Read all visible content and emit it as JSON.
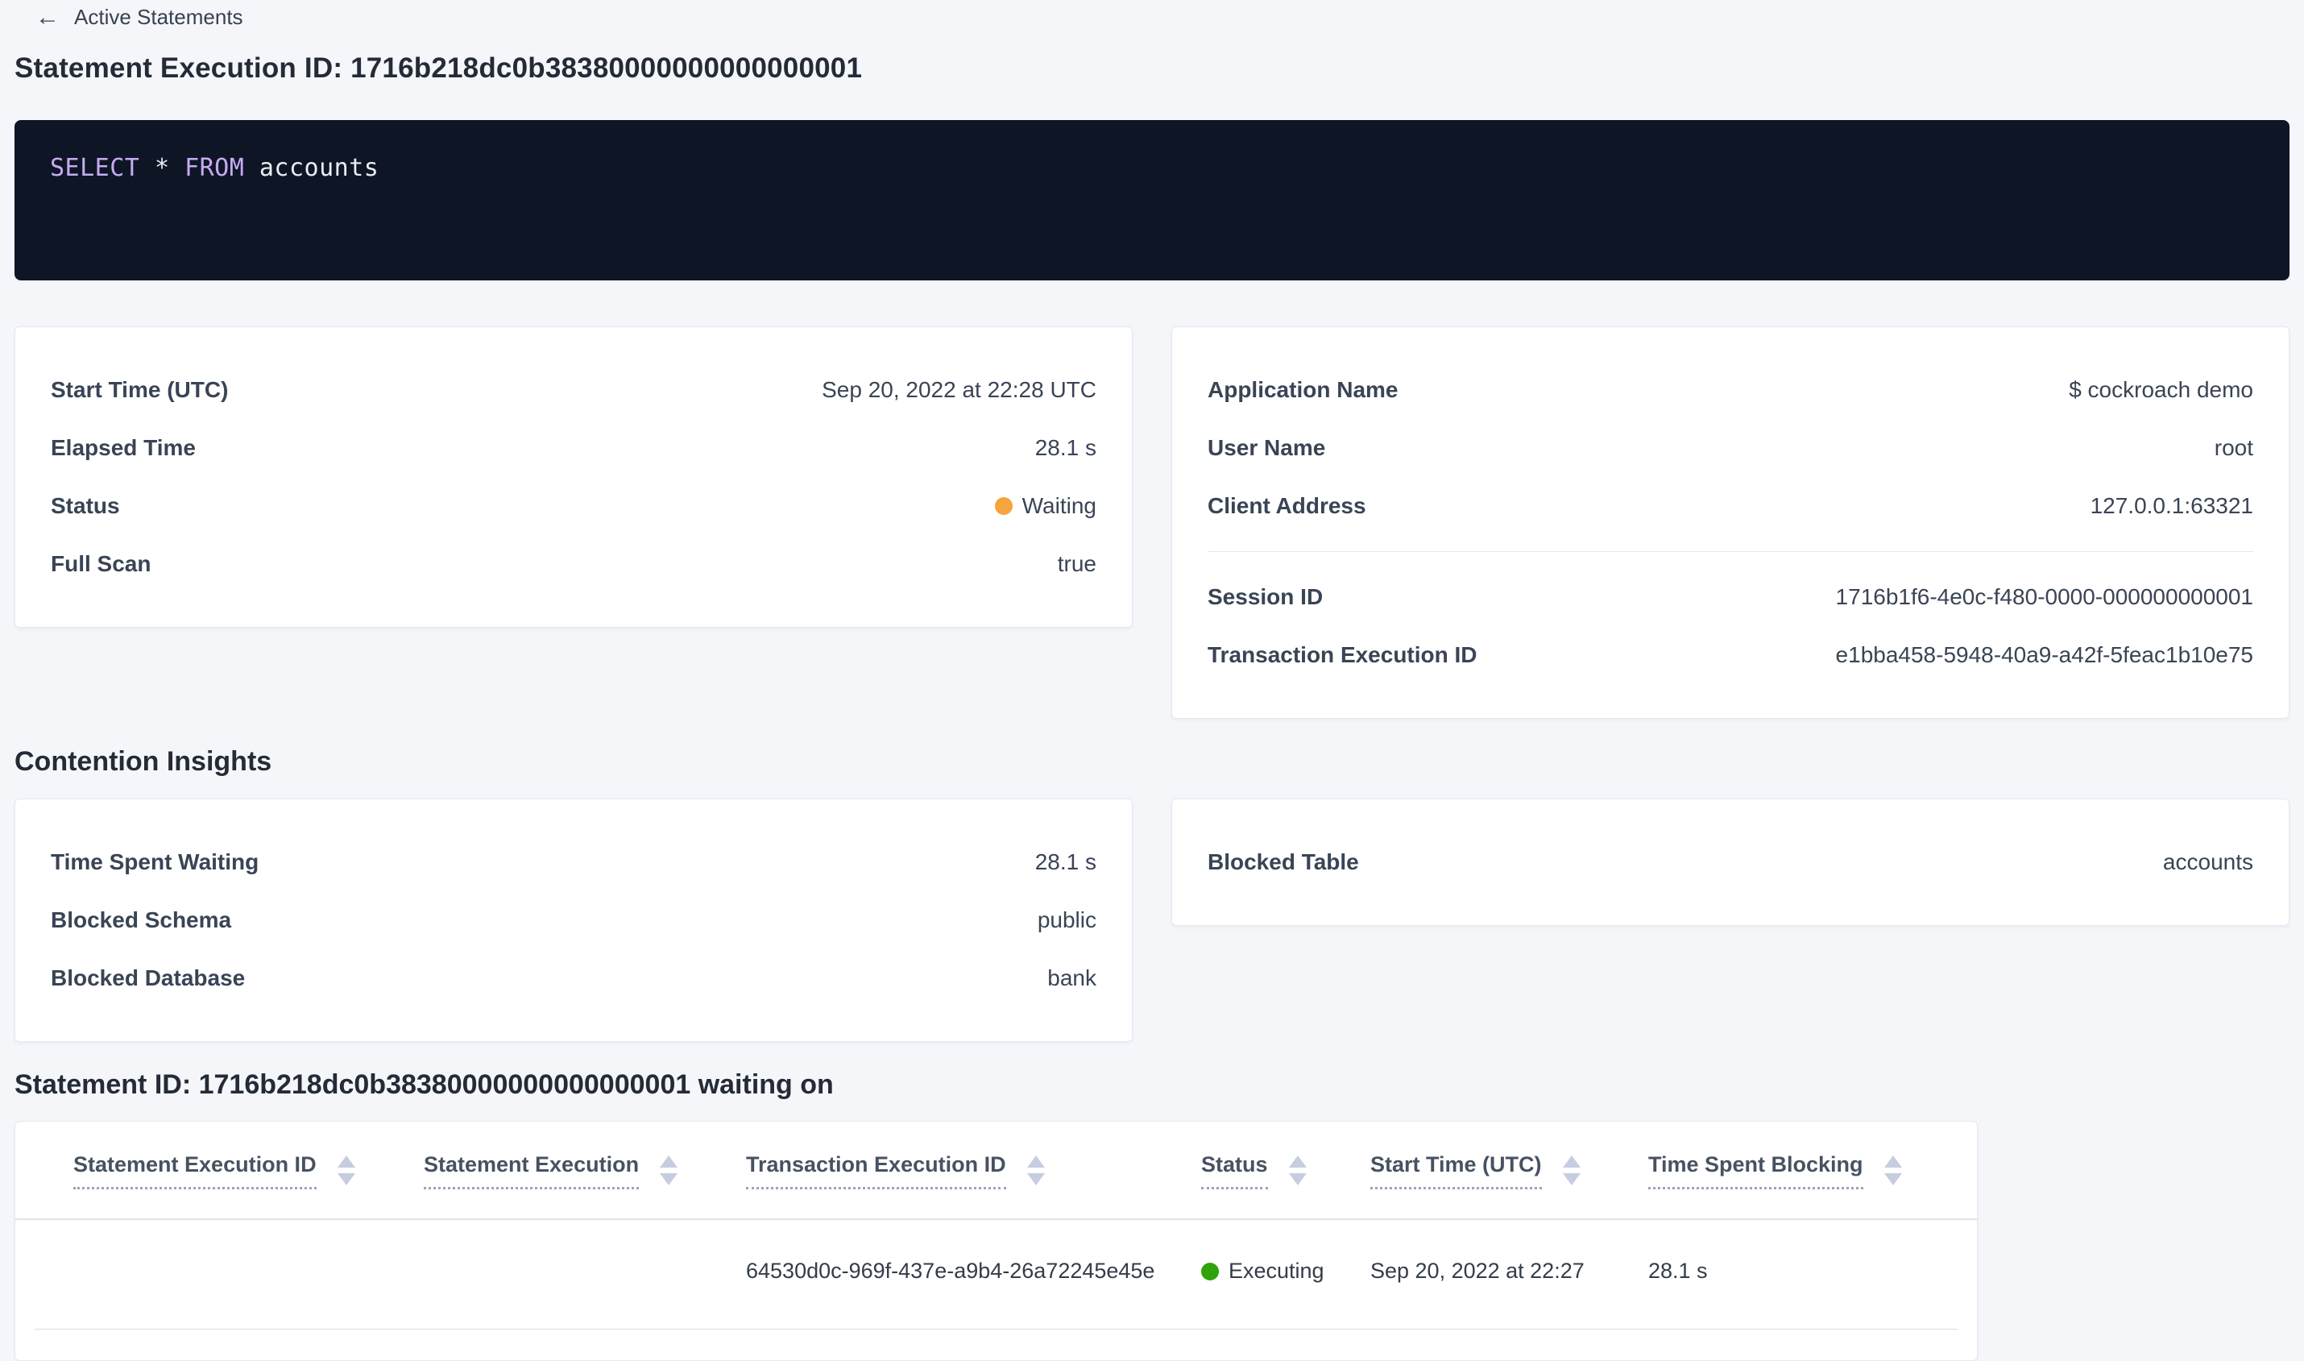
{
  "colors": {
    "page_background": "#f4f6fa",
    "sql_background": "#0e1626",
    "sql_keyword": "#c7abf1",
    "link_blue": "#0b5bfa",
    "status_waiting": "#f7a43c",
    "status_executing": "#2fa30b"
  },
  "breadcrumb": {
    "back_icon": "←",
    "label": "Active Statements"
  },
  "header": {
    "title": "Statement Execution ID: 1716b218dc0b38380000000000000001"
  },
  "sql": {
    "kw_select": "SELECT",
    "star": "*",
    "kw_from": "FROM",
    "ident": "accounts"
  },
  "overview": {
    "start_time_label": "Start Time (UTC)",
    "start_time_value": "Sep 20, 2022 at 22:28 UTC",
    "elapsed_label": "Elapsed Time",
    "elapsed_value": "28.1 s",
    "status_label": "Status",
    "status_value": "Waiting",
    "full_scan_label": "Full Scan",
    "full_scan_value": "true"
  },
  "session": {
    "app_label": "Application Name",
    "app_value": "$ cockroach demo",
    "user_label": "User Name",
    "user_value": "root",
    "client_label": "Client Address",
    "client_value": "127.0.0.1:63321",
    "session_label": "Session ID",
    "session_value": "1716b1f6-4e0c-f480-0000-000000000001",
    "txn_label": "Transaction Execution ID",
    "txn_value": "e1bba458-5948-40a9-a42f-5feac1b10e75"
  },
  "contention": {
    "heading": "Contention Insights",
    "waiting_label": "Time Spent Waiting",
    "waiting_value": "28.1 s",
    "schema_label": "Blocked Schema",
    "schema_value": "public",
    "database_label": "Blocked Database",
    "database_value": "bank",
    "table_label": "Blocked Table",
    "table_value": "accounts"
  },
  "waiting_on": {
    "heading": "Statement ID: 1716b218dc0b38380000000000000001 waiting on",
    "columns": [
      "Statement Execution ID",
      "Statement Execution",
      "Transaction Execution ID",
      "Status",
      "Start Time (UTC)",
      "Time Spent Blocking"
    ],
    "row": {
      "statement_execution_id": "",
      "statement_execution": "",
      "transaction_execution_id": "64530d0c-969f-437e-a9b4-26a72245e45e",
      "status": "Executing",
      "start_time": "Sep 20, 2022 at 22:27",
      "time_spent_blocking": "28.1 s"
    }
  }
}
